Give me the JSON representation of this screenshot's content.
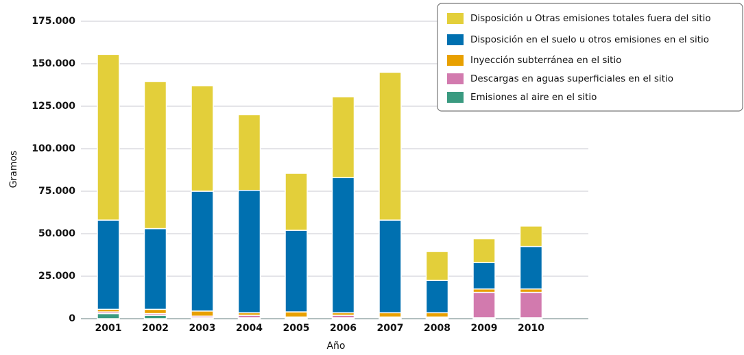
{
  "chart_data": {
    "type": "stacked_bar",
    "xlabel": "Año",
    "ylabel": "Gramos",
    "categories": [
      "2001",
      "2002",
      "2003",
      "2004",
      "2005",
      "2006",
      "2007",
      "2008",
      "2009",
      "2010"
    ],
    "series": [
      {
        "name": "Emisiones al aire en el sitio",
        "color": "#3a9a80",
        "values": [
          3000,
          2000,
          500,
          500,
          500,
          500,
          500,
          500,
          500,
          500
        ]
      },
      {
        "name": "Descargas en aguas superficiales en el sitio",
        "color": "#d27aae",
        "values": [
          1000,
          1000,
          1000,
          1500,
          500,
          1500,
          500,
          500,
          15000,
          15000
        ]
      },
      {
        "name": "Inyección subterránea en el sitio",
        "color": "#e8a000",
        "values": [
          1500,
          2500,
          3000,
          1500,
          3000,
          1500,
          2500,
          2500,
          2000,
          2000
        ]
      },
      {
        "name": "Disposición en el suelo u otros emisiones en el sitio",
        "color": "#0070b0",
        "values": [
          52500,
          47500,
          70500,
          72000,
          48000,
          79500,
          54500,
          19000,
          15500,
          25000
        ]
      },
      {
        "name": "Disposición u Otras emisiones totales fuera del sitio",
        "color": "#e3cf3a",
        "values": [
          97500,
          86500,
          62000,
          44500,
          33500,
          47500,
          87000,
          17000,
          14000,
          12000
        ]
      }
    ],
    "ylim": [
      0,
      175000
    ],
    "yticks": [
      0,
      {
        "value": 25000,
        "label": "25.000"
      },
      {
        "value": 50000,
        "label": "50.000"
      },
      {
        "value": 75000,
        "label": "75.000"
      },
      {
        "value": 100000,
        "label": "100.000"
      },
      {
        "value": 125000,
        "label": "125.000"
      },
      {
        "value": 150000,
        "label": "150.000"
      },
      {
        "value": 175000,
        "label": "175.000"
      }
    ],
    "grid": true,
    "legend": "top-right"
  }
}
